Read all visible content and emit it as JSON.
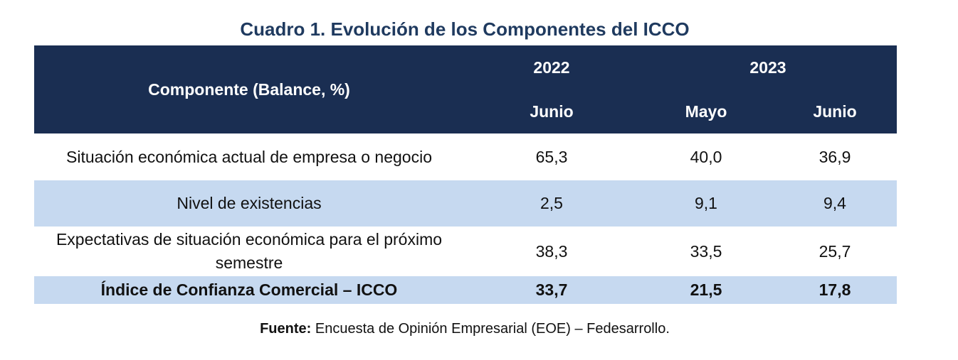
{
  "title": "Cuadro 1. Evolución de los Componentes del ICCO",
  "table": {
    "component_header": "Componente (Balance, %)",
    "years": [
      "2022",
      "2023"
    ],
    "months": [
      "Junio",
      "Mayo",
      "Junio"
    ],
    "rows": [
      {
        "label": "Situación económica actual de empresa o negocio",
        "values": [
          "65,3",
          "40,0",
          "36,9"
        ]
      },
      {
        "label": "Nivel de existencias",
        "values": [
          "2,5",
          "9,1",
          "9,4"
        ]
      },
      {
        "label": "Expectativas de situación económica para el próximo semestre",
        "values": [
          "38,3",
          "33,5",
          "25,7"
        ]
      },
      {
        "label": "Índice de Confianza Comercial – ICCO",
        "values": [
          "33,7",
          "21,5",
          "17,8"
        ]
      }
    ]
  },
  "source": {
    "label": "Fuente:",
    "text": " Encuesta de Opinión Empresarial (EOE) – Fedesarrollo."
  },
  "colors": {
    "header_bg": "#1a2e52",
    "title": "#1f3a5f",
    "band": "#c6d9f0"
  }
}
